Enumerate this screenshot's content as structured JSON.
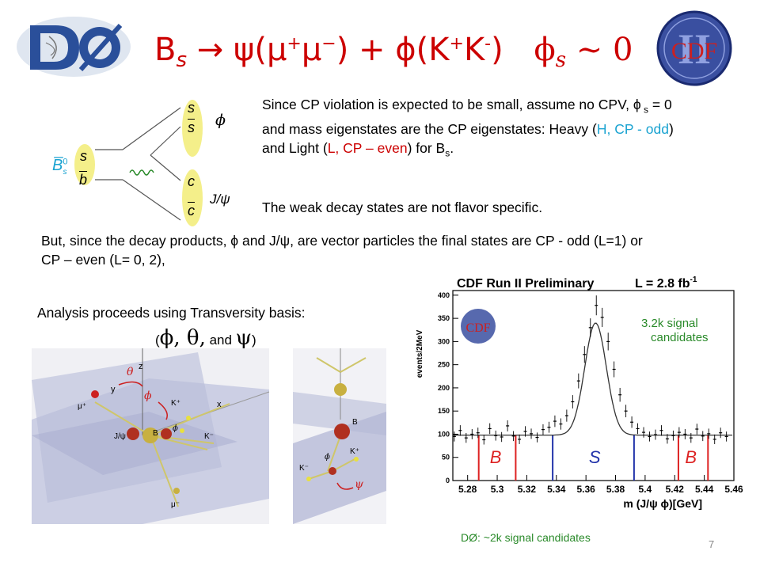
{
  "title": {
    "B": "B",
    "B_sub": "s",
    "arrow": "→ ψ(μ",
    "mu_plus": "+",
    "mu_mid": "μ",
    "mu_minus": "−",
    "plus_phi": ") + ϕ(K",
    "K_plus": "+",
    "K": "K",
    "K_minus": "-",
    "close": ")",
    "phis": "ϕ",
    "phis_sub": "s",
    "approx": "∼ 0"
  },
  "logos": {
    "d0": "DØ",
    "cdf": "CDF",
    "cdf_roman": "II"
  },
  "feynman": {
    "bs_label": "B̅",
    "bs_sup": "0",
    "bs_sub": "s",
    "q_s": "s",
    "q_b": "b",
    "top_s": "s",
    "top_sbar": "s",
    "phi_label": "ϕ",
    "c": "c",
    "cbar": "c",
    "jpsi_label": "J/ψ"
  },
  "text": {
    "p1_a": "Since CP violation is expected to be small, assume no CPV,  ϕ",
    "p1_s": " s",
    "p1_b": " = 0  and mass eigenstates are the CP eigenstates:  Heavy (",
    "p1_heavy": "H, CP - odd",
    "p1_c": ") and Light (",
    "p1_light": "L, CP – even",
    "p1_d": ") for B",
    "p1_bs": "s",
    "p1_e": ".",
    "p2": "The weak decay states are not flavor specific.",
    "p3": "But, since the decay products, ϕ and J/ψ, are vector particles the final states are CP - odd (L=1) or CP – even (L= 0, 2),",
    "p4": "Analysis proceeds using Transversity basis:",
    "p5_open": "(",
    "p5_greek": "ϕ, θ,",
    "p5_and": " and ",
    "p5_psi": "ψ",
    "p5_close": ")"
  },
  "transversity": {
    "z": "z",
    "y": "y",
    "x": "x",
    "theta": "θ",
    "phi": "ϕ",
    "psi": "ψ",
    "mu_plus": "μ⁺",
    "mu_minus": "μ⁻",
    "K_plus": "K⁺",
    "K_minus": "K⁻",
    "B": "B",
    "jpsi": "J/ψ",
    "phi_particle": "ϕ"
  },
  "chart_data": {
    "type": "scatter",
    "title": "CDF Run II Preliminary",
    "luminosity": "L = 2.8 fb",
    "luminosity_sup": "-1",
    "annotation": "3.2k signal\ncandidates",
    "xlabel": "m (J/ψ ϕ)[GeV]",
    "ylabel": "events/2MeV",
    "xlim": [
      5.27,
      5.46
    ],
    "ylim": [
      0,
      410
    ],
    "xticks": [
      "5.28",
      "5.3",
      "5.32",
      "5.34",
      "5.36",
      "5.38",
      "5.4",
      "5.42",
      "5.44",
      "5.46"
    ],
    "yticks": [
      "0",
      "50",
      "100",
      "150",
      "200",
      "250",
      "300",
      "350",
      "400"
    ],
    "region_labels": {
      "left": "B",
      "center": "S",
      "right": "B"
    },
    "region_lines": {
      "red": [
        5.2875,
        5.3125,
        5.4225,
        5.4425
      ],
      "blue": [
        5.3375,
        5.3925
      ]
    },
    "fit": {
      "background": 98,
      "peak_mean": 5.3665,
      "peak_amp": 242,
      "sigma_core": 0.0073
    },
    "x": [
      5.271,
      5.275,
      5.279,
      5.283,
      5.287,
      5.291,
      5.295,
      5.299,
      5.303,
      5.307,
      5.311,
      5.315,
      5.319,
      5.323,
      5.327,
      5.331,
      5.335,
      5.339,
      5.343,
      5.347,
      5.351,
      5.355,
      5.359,
      5.363,
      5.367,
      5.371,
      5.375,
      5.379,
      5.383,
      5.387,
      5.391,
      5.395,
      5.399,
      5.403,
      5.407,
      5.411,
      5.415,
      5.419,
      5.423,
      5.427,
      5.431,
      5.435,
      5.439,
      5.443,
      5.447,
      5.451,
      5.455
    ],
    "y": [
      95,
      108,
      92,
      100,
      103,
      88,
      112,
      97,
      94,
      118,
      96,
      89,
      106,
      101,
      93,
      110,
      115,
      128,
      122,
      140,
      170,
      215,
      272,
      330,
      378,
      352,
      300,
      240,
      185,
      150,
      126,
      112,
      104,
      95,
      99,
      108,
      90,
      97,
      104,
      100,
      92,
      111,
      96,
      101,
      89,
      103,
      95
    ],
    "footer_note": "DØ: ~2k signal candidates"
  },
  "slide_number": "7"
}
